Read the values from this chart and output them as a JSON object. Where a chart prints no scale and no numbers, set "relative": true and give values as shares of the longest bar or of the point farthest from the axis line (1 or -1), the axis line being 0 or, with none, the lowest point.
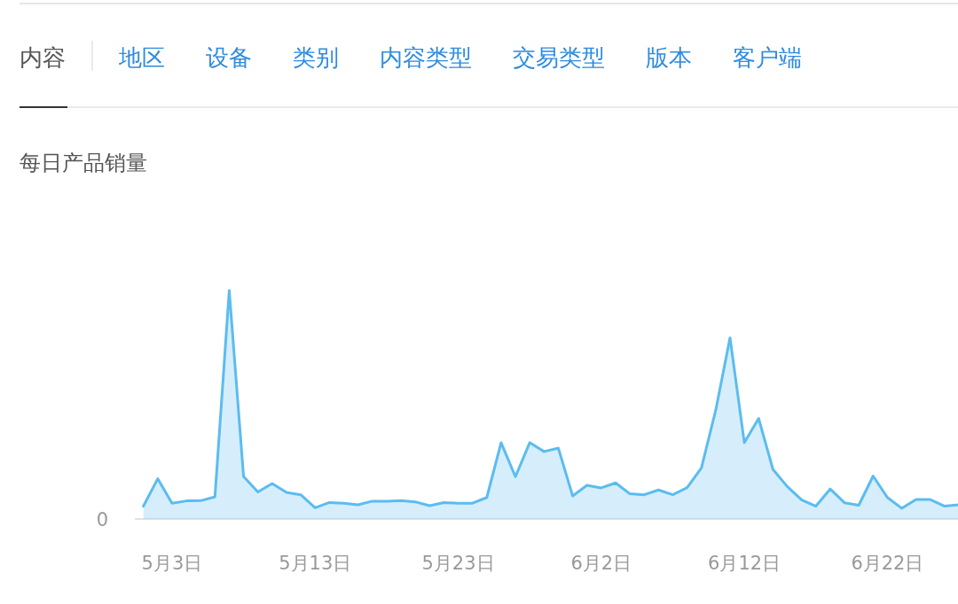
{
  "chart_data": {
    "type": "area",
    "title": "每日产品销量",
    "annotations": [
      "内容",
      "地区",
      "设备",
      "类别",
      "内容类型",
      "交易类型",
      "版本",
      "客户端",
      "0"
    ],
    "categories": [
      null,
      null,
      "5月3日",
      null,
      null,
      null,
      null,
      null,
      null,
      null,
      null,
      null,
      "5月13日",
      null,
      null,
      null,
      null,
      null,
      null,
      null,
      null,
      null,
      "5月23日",
      null,
      null,
      null,
      null,
      null,
      null,
      null,
      null,
      null,
      "6月2日",
      null,
      null,
      null,
      null,
      null,
      null,
      null,
      null,
      null,
      "6月12日",
      null,
      null,
      null,
      null,
      null,
      null,
      null,
      null,
      null,
      "6月22日",
      null,
      null,
      null,
      null,
      null
    ],
    "values": [
      0.056,
      0.176,
      0.069,
      0.079,
      0.08,
      0.097,
      1,
      0.186,
      0.118,
      0.155,
      0.116,
      0.106,
      0.049,
      0.072,
      0.069,
      0.062,
      0.078,
      0.078,
      0.08,
      0.075,
      0.058,
      0.072,
      0.069,
      0.069,
      0.094,
      0.334,
      0.185,
      0.334,
      0.295,
      0.31,
      0.101,
      0.147,
      0.136,
      0.158,
      0.11,
      0.106,
      0.127,
      0.106,
      0.137,
      0.223,
      0.476,
      0.793,
      0.334,
      0.44,
      0.217,
      0.142,
      0.084,
      0.056,
      0.131,
      0.071,
      0.06,
      0.188,
      0.094,
      0.047,
      0.085,
      0.085,
      0.056,
      0.062
    ],
    "color": "#5bbcf0",
    "relative": true
  }
}
